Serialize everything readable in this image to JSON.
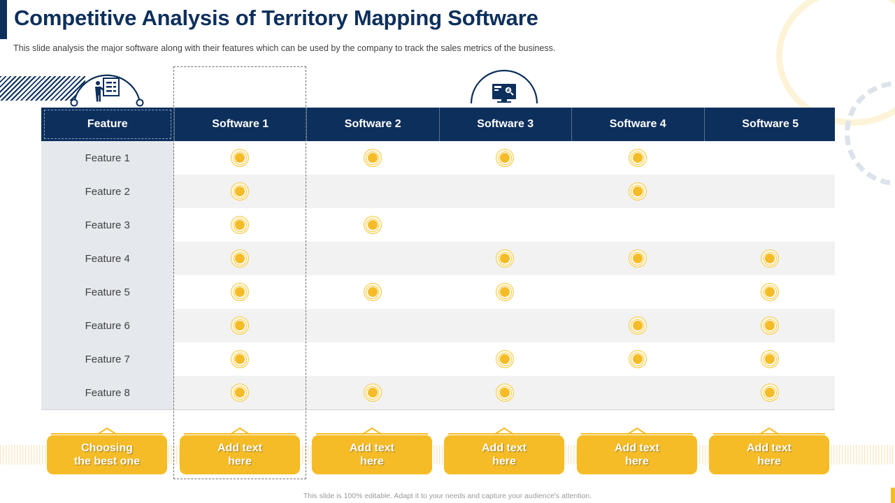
{
  "header": {
    "title": "Competitive Analysis of Territory Mapping Software",
    "subtitle": "This slide analysis the major software  along with their features  which can be used by the company to track the sales metrics of the business."
  },
  "icons": {
    "left": "presenter-board-icon",
    "middle": "monitor-analytics-icon"
  },
  "table": {
    "headers": [
      "Feature",
      "Software 1",
      "Software 2",
      "Software 3",
      "Software 4",
      "Software 5"
    ],
    "rows": [
      {
        "feature": "Feature 1",
        "checks": [
          true,
          true,
          true,
          true,
          false
        ]
      },
      {
        "feature": "Feature 2",
        "checks": [
          true,
          false,
          false,
          true,
          false
        ]
      },
      {
        "feature": "Feature 3",
        "checks": [
          true,
          true,
          false,
          false,
          false
        ]
      },
      {
        "feature": "Feature 4",
        "checks": [
          true,
          false,
          true,
          true,
          true
        ]
      },
      {
        "feature": "Feature 5",
        "checks": [
          true,
          true,
          true,
          false,
          true
        ]
      },
      {
        "feature": "Feature 6",
        "checks": [
          true,
          false,
          false,
          true,
          true
        ]
      },
      {
        "feature": "Feature 7",
        "checks": [
          true,
          false,
          true,
          true,
          true
        ]
      },
      {
        "feature": "Feature 8",
        "checks": [
          true,
          true,
          true,
          false,
          true
        ]
      }
    ],
    "highlighted_column": "Software 1"
  },
  "buttons": [
    {
      "label": "Choosing\nthe best one"
    },
    {
      "label": "Add text\nhere"
    },
    {
      "label": "Add text\nhere"
    },
    {
      "label": "Add text\nhere"
    },
    {
      "label": "Add text\nhere"
    },
    {
      "label": "Add text\nhere"
    }
  ],
  "footer": {
    "text": "This slide is 100% editable.  Adapt it to your needs and capture your audience's attention."
  },
  "colors": {
    "navy": "#0d2f5c",
    "accent_yellow": "#f5bc27",
    "feature_col_bg": "#e5e9ee",
    "alt_row_bg": "#f2f2f2"
  }
}
